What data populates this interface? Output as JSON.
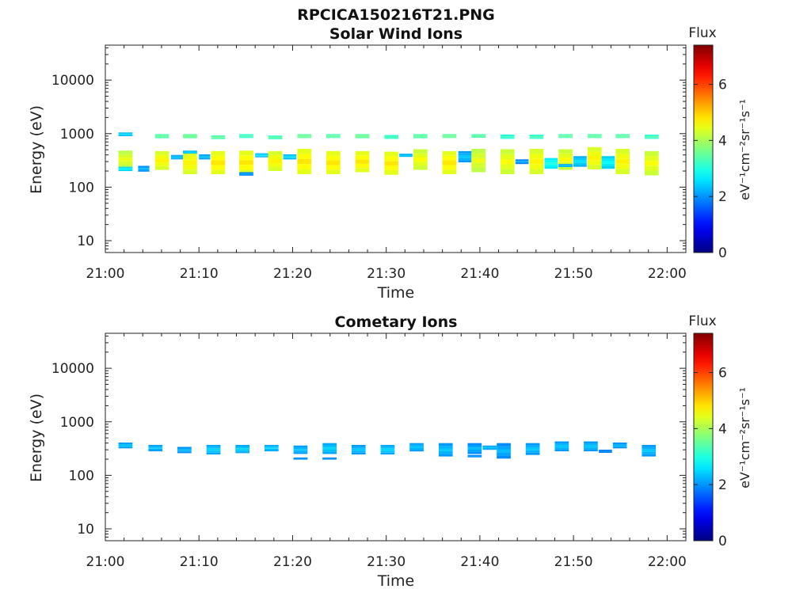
{
  "figure_title": "RPCICA150216T21.PNG",
  "chart_data": [
    {
      "type": "heatmap",
      "title": "Solar Wind Ions",
      "xlabel": "Time",
      "ylabel": "Energy (eV)",
      "x_ticks": [
        "21:00",
        "21:10",
        "21:20",
        "21:30",
        "21:40",
        "21:50",
        "22:00"
      ],
      "x_range_min": [
        0,
        62
      ],
      "y_ticks": [
        "10",
        "100",
        "1000",
        "10000"
      ],
      "y_range_ev": [
        6,
        45000
      ],
      "y_scale": "log",
      "colorbar": {
        "title": "Flux",
        "label": "eV⁻¹cm⁻²sr⁻¹s⁻¹",
        "range": [
          0,
          7.4
        ],
        "ticks": [
          "0",
          "2",
          "4",
          "6"
        ],
        "colormap": "jet"
      },
      "columns": [
        {
          "t": 1.4,
          "w": 1.5,
          "bands": [
            [
              900,
              1050,
              2.6
            ],
            [
              225,
              480,
              4.5
            ],
            [
              200,
              240,
              2.8
            ]
          ]
        },
        {
          "t": 3.5,
          "w": 1.2,
          "bands": [
            [
              195,
              250,
              2.3
            ]
          ]
        },
        {
          "t": 5.3,
          "w": 1.5,
          "bands": [
            [
              820,
              980,
              3.6
            ],
            [
              210,
              470,
              4.7
            ]
          ]
        },
        {
          "t": 7.0,
          "w": 1.5,
          "bands": [
            [
              330,
              400,
              2.4
            ]
          ]
        },
        {
          "t": 8.3,
          "w": 1.5,
          "bands": [
            [
              820,
              980,
              3.7
            ],
            [
              175,
              470,
              4.7
            ],
            [
              430,
              480,
              2.6
            ]
          ]
        },
        {
          "t": 10.0,
          "w": 1.2,
          "bands": [
            [
              330,
              410,
              2.4
            ]
          ]
        },
        {
          "t": 11.3,
          "w": 1.5,
          "bands": [
            [
              790,
              930,
              3.6
            ],
            [
              175,
              470,
              4.8
            ]
          ]
        },
        {
          "t": 14.3,
          "w": 1.5,
          "bands": [
            [
              830,
              980,
              3.4
            ],
            [
              175,
              480,
              4.8
            ],
            [
              165,
              190,
              2.2
            ]
          ]
        },
        {
          "t": 16.0,
          "w": 1.5,
          "bands": [
            [
              360,
              430,
              2.6
            ]
          ]
        },
        {
          "t": 17.4,
          "w": 1.5,
          "bands": [
            [
              790,
              920,
              3.5
            ],
            [
              200,
              470,
              4.7
            ]
          ]
        },
        {
          "t": 19.0,
          "w": 1.4,
          "bands": [
            [
              330,
              410,
              2.6
            ]
          ]
        },
        {
          "t": 20.5,
          "w": 1.5,
          "bands": [
            [
              830,
              980,
              3.7
            ],
            [
              175,
              520,
              4.8
            ]
          ]
        },
        {
          "t": 23.6,
          "w": 1.5,
          "bands": [
            [
              830,
              980,
              3.6
            ],
            [
              175,
              470,
              4.8
            ]
          ]
        },
        {
          "t": 26.7,
          "w": 1.5,
          "bands": [
            [
              820,
              980,
              3.7
            ],
            [
              190,
              470,
              4.8
            ]
          ]
        },
        {
          "t": 29.8,
          "w": 1.5,
          "bands": [
            [
              800,
              940,
              3.4
            ],
            [
              170,
              460,
              4.8
            ]
          ]
        },
        {
          "t": 31.4,
          "w": 1.4,
          "bands": [
            [
              370,
              420,
              2.5
            ]
          ]
        },
        {
          "t": 32.9,
          "w": 1.5,
          "bands": [
            [
              820,
              980,
              3.6
            ],
            [
              210,
              510,
              4.6
            ]
          ]
        },
        {
          "t": 36.0,
          "w": 1.5,
          "bands": [
            [
              830,
              980,
              3.7
            ],
            [
              175,
              470,
              4.8
            ]
          ]
        },
        {
          "t": 37.7,
          "w": 1.4,
          "bands": [
            [
              290,
              470,
              2.4
            ]
          ]
        },
        {
          "t": 39.1,
          "w": 1.5,
          "bands": [
            [
              840,
              980,
              3.6
            ],
            [
              190,
              520,
              4.5
            ]
          ]
        },
        {
          "t": 42.2,
          "w": 1.5,
          "bands": [
            [
              800,
              960,
              3.3
            ],
            [
              175,
              510,
              4.6
            ]
          ]
        },
        {
          "t": 43.8,
          "w": 1.4,
          "bands": [
            [
              270,
              330,
              2.2
            ]
          ]
        },
        {
          "t": 45.3,
          "w": 1.5,
          "bands": [
            [
              800,
              960,
              3.4
            ],
            [
              175,
              520,
              4.7
            ]
          ]
        },
        {
          "t": 46.9,
          "w": 1.4,
          "bands": [
            [
              220,
              350,
              3.0
            ]
          ]
        },
        {
          "t": 48.4,
          "w": 1.5,
          "bands": [
            [
              830,
              980,
              3.6
            ],
            [
              210,
              510,
              4.6
            ],
            [
              240,
              270,
              2.5
            ]
          ]
        },
        {
          "t": 50.0,
          "w": 1.4,
          "bands": [
            [
              240,
              380,
              2.6
            ]
          ]
        },
        {
          "t": 51.5,
          "w": 1.5,
          "bands": [
            [
              830,
              980,
              3.6
            ],
            [
              215,
              560,
              4.7
            ]
          ]
        },
        {
          "t": 53.0,
          "w": 1.4,
          "bands": [
            [
              220,
              380,
              2.8
            ]
          ]
        },
        {
          "t": 54.5,
          "w": 1.5,
          "bands": [
            [
              830,
              980,
              3.6
            ],
            [
              175,
              520,
              4.7
            ]
          ]
        },
        {
          "t": 57.6,
          "w": 1.5,
          "bands": [
            [
              800,
              960,
              3.4
            ],
            [
              165,
              470,
              4.6
            ]
          ]
        }
      ]
    },
    {
      "type": "heatmap",
      "title": "Cometary Ions",
      "xlabel": "Time",
      "ylabel": "Energy (eV)",
      "x_ticks": [
        "21:00",
        "21:10",
        "21:20",
        "21:30",
        "21:40",
        "21:50",
        "22:00"
      ],
      "x_range_min": [
        0,
        62
      ],
      "y_ticks": [
        "10",
        "100",
        "1000",
        "10000"
      ],
      "y_range_ev": [
        6,
        45000
      ],
      "y_scale": "log",
      "colorbar": {
        "title": "Flux",
        "label": "eV⁻¹cm⁻²sr⁻¹s⁻¹",
        "range": [
          0,
          7.4
        ],
        "ticks": [
          "0",
          "2",
          "4",
          "6"
        ],
        "colormap": "jet"
      },
      "columns": [
        {
          "t": 1.4,
          "w": 1.5,
          "bands": [
            [
              320,
              410,
              2.4
            ]
          ]
        },
        {
          "t": 4.6,
          "w": 1.5,
          "bands": [
            [
              280,
              370,
              2.4
            ]
          ]
        },
        {
          "t": 7.7,
          "w": 1.5,
          "bands": [
            [
              260,
              340,
              2.3
            ]
          ]
        },
        {
          "t": 10.8,
          "w": 1.5,
          "bands": [
            [
              245,
              370,
              2.5
            ]
          ]
        },
        {
          "t": 13.9,
          "w": 1.5,
          "bands": [
            [
              260,
              370,
              2.5
            ]
          ]
        },
        {
          "t": 17.0,
          "w": 1.5,
          "bands": [
            [
              280,
              370,
              2.5
            ]
          ]
        },
        {
          "t": 20.1,
          "w": 1.5,
          "bands": [
            [
              250,
              360,
              2.4
            ],
            [
              200,
              215,
              2.2
            ]
          ]
        },
        {
          "t": 23.2,
          "w": 1.5,
          "bands": [
            [
              250,
              400,
              2.5
            ],
            [
              200,
              215,
              2.2
            ]
          ]
        },
        {
          "t": 26.3,
          "w": 1.5,
          "bands": [
            [
              245,
              370,
              2.4
            ]
          ]
        },
        {
          "t": 29.4,
          "w": 1.5,
          "bands": [
            [
              245,
              370,
              2.5
            ]
          ]
        },
        {
          "t": 32.5,
          "w": 1.5,
          "bands": [
            [
              280,
              400,
              2.4
            ]
          ]
        },
        {
          "t": 35.6,
          "w": 1.5,
          "bands": [
            [
              225,
              400,
              2.4
            ]
          ]
        },
        {
          "t": 38.7,
          "w": 1.5,
          "bands": [
            [
              250,
              400,
              2.3
            ],
            [
              220,
              240,
              2.2
            ]
          ]
        },
        {
          "t": 40.3,
          "w": 1.5,
          "bands": [
            [
              300,
              360,
              2.4
            ]
          ]
        },
        {
          "t": 41.8,
          "w": 1.5,
          "bands": [
            [
              205,
              400,
              2.3
            ]
          ]
        },
        {
          "t": 44.9,
          "w": 1.5,
          "bands": [
            [
              240,
              400,
              2.4
            ]
          ]
        },
        {
          "t": 48.0,
          "w": 1.5,
          "bands": [
            [
              280,
              430,
              2.4
            ]
          ]
        },
        {
          "t": 51.1,
          "w": 1.5,
          "bands": [
            [
              280,
              430,
              2.4
            ]
          ]
        },
        {
          "t": 52.7,
          "w": 1.4,
          "bands": [
            [
              265,
              300,
              2.1
            ]
          ]
        },
        {
          "t": 54.2,
          "w": 1.5,
          "bands": [
            [
              320,
              410,
              2.3
            ]
          ]
        },
        {
          "t": 57.3,
          "w": 1.5,
          "bands": [
            [
              225,
              370,
              2.4
            ]
          ]
        }
      ]
    }
  ]
}
